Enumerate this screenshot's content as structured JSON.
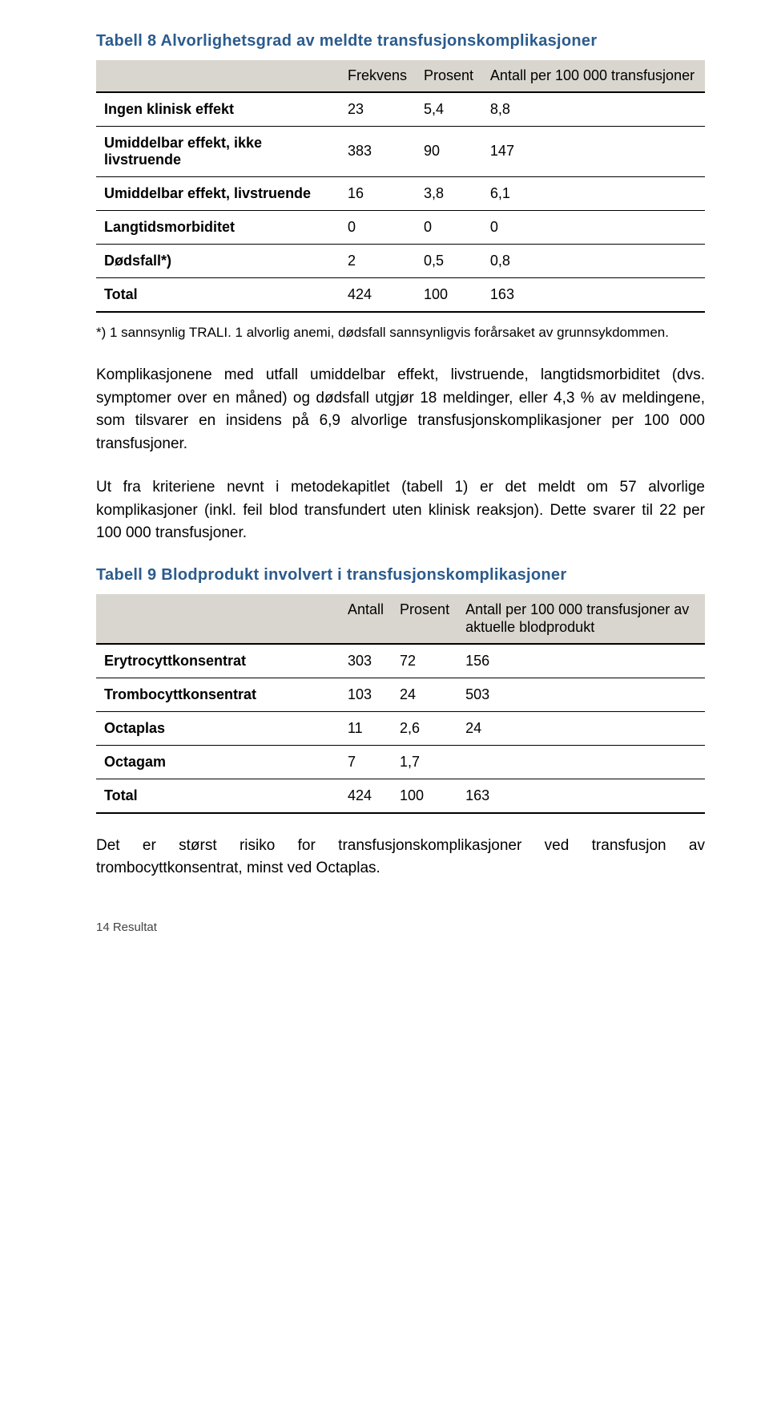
{
  "table8": {
    "title": "Tabell 8 Alvorlighetsgrad av meldte transfusjonskomplikasjoner",
    "columns": [
      "",
      "Frekvens",
      "Prosent",
      "Antall per 100 000 transfusjoner"
    ],
    "rows": [
      {
        "label": "Ingen klinisk effekt",
        "c1": "23",
        "c2": "5,4",
        "c3": "8,8",
        "bold": true
      },
      {
        "label": "Umiddelbar effekt, ikke livstruende",
        "c1": "383",
        "c2": "90",
        "c3": "147",
        "bold": true
      },
      {
        "label": "Umiddelbar effekt, livstruende",
        "c1": "16",
        "c2": "3,8",
        "c3": "6,1",
        "bold": true
      },
      {
        "label": "Langtidsmorbiditet",
        "c1": "0",
        "c2": "0",
        "c3": "0",
        "bold": true
      },
      {
        "label": "Dødsfall*)",
        "c1": "2",
        "c2": "0,5",
        "c3": "0,8",
        "bold": true
      },
      {
        "label": "Total",
        "c1": "424",
        "c2": "100",
        "c3": "163",
        "bold": true
      }
    ],
    "footnote": "*) 1 sannsynlig TRALI. 1 alvorlig anemi, dødsfall sannsynligvis forårsaket av grunnsykdommen."
  },
  "para1": "Komplikasjonene med utfall umiddelbar effekt, livstruende, langtidsmorbiditet (dvs. symptomer over en måned) og dødsfall utgjør 18 meldinger, eller 4,3 % av meldingene, som tilsvarer en insidens på 6,9 alvorlige transfusjonskomplikasjoner per 100 000 transfusjoner.",
  "para2": "Ut fra kriteriene nevnt i metodekapitlet (tabell 1) er det meldt om 57 alvorlige komplikasjoner (inkl. feil blod transfundert uten klinisk reaksjon). Dette svarer til 22 per 100 000 transfusjoner.",
  "table9": {
    "title": "Tabell 9 Blodprodukt involvert i transfusjonskomplikasjoner",
    "columns": [
      "",
      "Antall",
      "Prosent",
      "Antall per 100 000 transfusjoner av aktuelle blodprodukt"
    ],
    "rows": [
      {
        "label": "Erytrocyttkonsentrat",
        "c1": "303",
        "c2": "72",
        "c3": "156",
        "bold": true
      },
      {
        "label": "Trombocyttkonsentrat",
        "c1": "103",
        "c2": "24",
        "c3": "503",
        "bold": true
      },
      {
        "label": "Octaplas",
        "c1": "11",
        "c2": "2,6",
        "c3": "24",
        "bold": true
      },
      {
        "label": "Octagam",
        "c1": "7",
        "c2": "1,7",
        "c3": "",
        "bold": true
      },
      {
        "label": "Total",
        "c1": "424",
        "c2": "100",
        "c3": "163",
        "bold": true
      }
    ]
  },
  "para3": "Det er størst risiko for transfusjonskomplikasjoner ved transfusjon av trombocyttkonsentrat, minst ved Octaplas.",
  "footer": "14   Resultat"
}
